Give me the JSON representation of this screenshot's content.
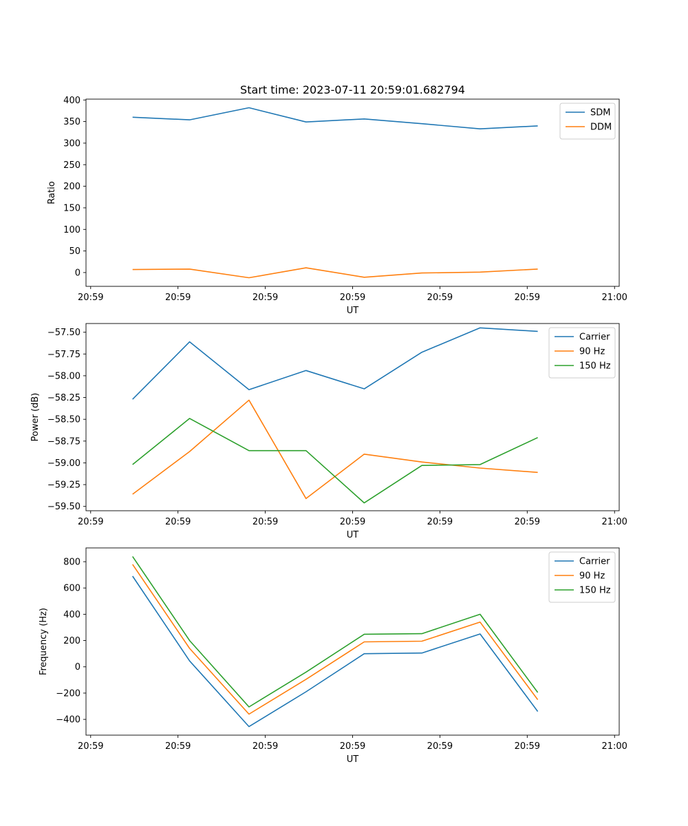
{
  "chart_data": [
    {
      "type": "line",
      "title": "Start time: 2023-07-11 20:59:01.682794",
      "xlabel": "UT",
      "ylabel": "Ratio",
      "xlim": [
        -0.08,
        9.08
      ],
      "ylim": [
        -32,
        402
      ],
      "x": [
        0.72,
        1.7,
        2.72,
        3.7,
        4.7,
        5.69,
        6.69,
        7.68
      ],
      "xticks": [
        0,
        1.5,
        3,
        4.5,
        6,
        7.5,
        9
      ],
      "xtick_labels": [
        "20:59",
        "20:59",
        "20:59",
        "20:59",
        "20:59",
        "20:59",
        "21:00"
      ],
      "yticks": [
        0,
        50,
        100,
        150,
        200,
        250,
        300,
        350,
        400
      ],
      "ytick_labels": [
        "0",
        "50",
        "100",
        "150",
        "200",
        "250",
        "300",
        "350",
        "400"
      ],
      "legend": "top-right",
      "series": [
        {
          "name": "SDM",
          "color": "#1f77b4",
          "values": [
            360,
            354,
            382,
            349,
            356,
            345,
            333,
            340
          ]
        },
        {
          "name": "DDM",
          "color": "#ff7f0e",
          "values": [
            7,
            8,
            -12,
            11,
            -11,
            -1,
            1,
            8
          ]
        }
      ]
    },
    {
      "type": "line",
      "title": "",
      "xlabel": "UT",
      "ylabel": "Power (dB)",
      "xlim": [
        -0.08,
        9.08
      ],
      "ylim": [
        -59.55,
        -57.4
      ],
      "x": [
        0.72,
        1.7,
        2.72,
        3.7,
        4.7,
        5.69,
        6.69,
        7.68
      ],
      "xticks": [
        0,
        1.5,
        3,
        4.5,
        6,
        7.5,
        9
      ],
      "xtick_labels": [
        "20:59",
        "20:59",
        "20:59",
        "20:59",
        "20:59",
        "20:59",
        "21:00"
      ],
      "yticks": [
        -59.5,
        -59.25,
        -59.0,
        -58.75,
        -58.5,
        -58.25,
        -58.0,
        -57.75,
        -57.5
      ],
      "ytick_labels": [
        "−59.50",
        "−59.25",
        "−59.00",
        "−58.75",
        "−58.50",
        "−58.25",
        "−58.00",
        "−57.75",
        "−57.50"
      ],
      "legend": "top-right",
      "series": [
        {
          "name": "Carrier",
          "color": "#1f77b4",
          "values": [
            -58.27,
            -57.61,
            -58.16,
            -57.94,
            -58.15,
            -57.73,
            -57.45,
            -57.49
          ]
        },
        {
          "name": "90 Hz",
          "color": "#ff7f0e",
          "values": [
            -59.36,
            -58.87,
            -58.28,
            -59.41,
            -58.9,
            -58.99,
            -59.06,
            -59.11
          ]
        },
        {
          "name": "150 Hz",
          "color": "#2ca02c",
          "values": [
            -59.02,
            -58.49,
            -58.86,
            -58.86,
            -59.46,
            -59.03,
            -59.02,
            -58.71
          ]
        }
      ]
    },
    {
      "type": "line",
      "title": "",
      "xlabel": "UT",
      "ylabel": "Frequency (Hz)",
      "xlim": [
        -0.08,
        9.08
      ],
      "ylim": [
        -520,
        905
      ],
      "x": [
        0.72,
        1.7,
        2.72,
        3.7,
        4.7,
        5.69,
        6.69,
        7.68
      ],
      "xticks": [
        0,
        1.5,
        3,
        4.5,
        6,
        7.5,
        9
      ],
      "xtick_labels": [
        "20:59",
        "20:59",
        "20:59",
        "20:59",
        "20:59",
        "20:59",
        "21:00"
      ],
      "yticks": [
        -400,
        -200,
        0,
        200,
        400,
        600,
        800
      ],
      "ytick_labels": [
        "−400",
        "−200",
        "0",
        "200",
        "400",
        "600",
        "800"
      ],
      "legend": "top-right",
      "series": [
        {
          "name": "Carrier",
          "color": "#1f77b4",
          "values": [
            690,
            45,
            -455,
            -190,
            100,
            105,
            250,
            -340
          ]
        },
        {
          "name": "90 Hz",
          "color": "#ff7f0e",
          "values": [
            780,
            140,
            -360,
            -95,
            190,
            195,
            340,
            -250
          ]
        },
        {
          "name": "150 Hz",
          "color": "#2ca02c",
          "values": [
            840,
            200,
            -305,
            -40,
            248,
            252,
            400,
            -195
          ]
        }
      ]
    }
  ]
}
